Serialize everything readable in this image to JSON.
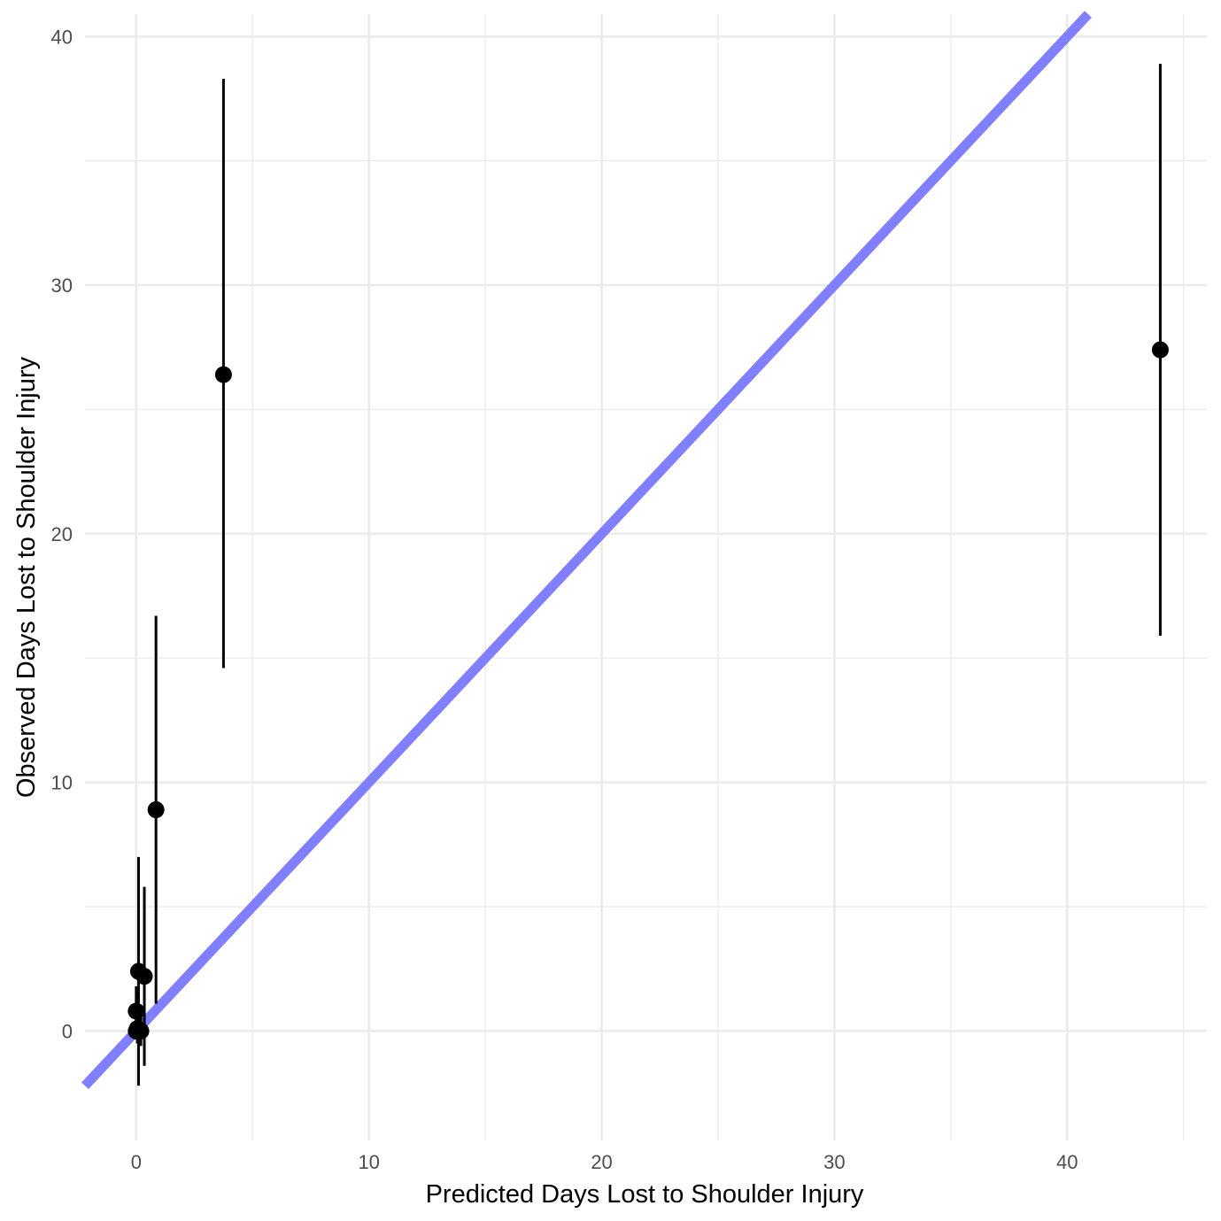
{
  "chart_data": {
    "type": "scatter",
    "title": "",
    "xlabel": "Predicted Days Lost to Shoulder Injury",
    "ylabel": "Observed Days Lost to Shoulder Injury",
    "xlim": [
      -2.2,
      46
    ],
    "ylim": [
      -4.4,
      40.9
    ],
    "x_ticks": [
      0,
      10,
      20,
      30,
      40
    ],
    "y_ticks": [
      0,
      10,
      20,
      30,
      40
    ],
    "x_tick_labels": [
      "0",
      "10",
      "20",
      "30",
      "40"
    ],
    "y_tick_labels": [
      "0",
      "10",
      "20",
      "30",
      "40"
    ],
    "grid": true,
    "theme": "minimal",
    "reference_line": {
      "intercept": 0,
      "slope": 1,
      "color": "#8080ff"
    },
    "point_color": "#000000",
    "points": [
      {
        "x": 0.0,
        "y": 0.0,
        "ymin": 0.0,
        "ymax": 0.0
      },
      {
        "x": 0.05,
        "y": 0.1,
        "ymin": -0.5,
        "ymax": 1.0
      },
      {
        "x": 0.0,
        "y": 0.8,
        "ymin": 0.0,
        "ymax": 1.8
      },
      {
        "x": 0.1,
        "y": 2.4,
        "ymin": -2.2,
        "ymax": 7.0
      },
      {
        "x": 0.2,
        "y": 0.0,
        "ymin": -0.6,
        "ymax": 0.6
      },
      {
        "x": 0.35,
        "y": 2.2,
        "ymin": -1.4,
        "ymax": 5.8
      },
      {
        "x": 0.85,
        "y": 8.9,
        "ymin": 1.1,
        "ymax": 16.7
      },
      {
        "x": 3.75,
        "y": 26.4,
        "ymin": 14.6,
        "ymax": 38.3
      },
      {
        "x": 44.0,
        "y": 27.4,
        "ymin": 15.9,
        "ymax": 38.9
      }
    ]
  }
}
